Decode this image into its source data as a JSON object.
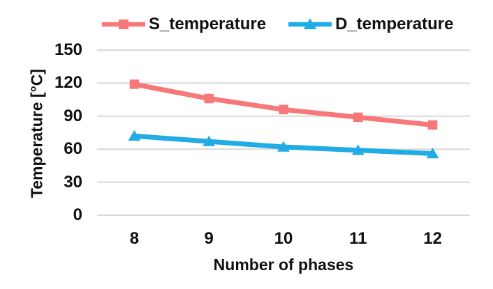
{
  "chart_data": {
    "type": "line",
    "title": "",
    "xlabel": "Number of phases",
    "ylabel": "Temperature [°C]",
    "categories": [
      "8",
      "9",
      "10",
      "11",
      "12"
    ],
    "series": [
      {
        "name": "S_temperature",
        "values": [
          119,
          106,
          96,
          89,
          82
        ],
        "color": "#F8787A",
        "marker": "square"
      },
      {
        "name": "D_temperature",
        "values": [
          72,
          67,
          62,
          59,
          56
        ],
        "color": "#21ACE6",
        "marker": "triangle"
      }
    ],
    "ylim": [
      0,
      150
    ],
    "ytick_step": 30,
    "ytick_labels": [
      "150",
      "120",
      "90",
      "60",
      "30",
      "0"
    ],
    "grid": true,
    "grid_color": "#D9D9D9",
    "text_color": "#111111",
    "legend_position": "top"
  }
}
